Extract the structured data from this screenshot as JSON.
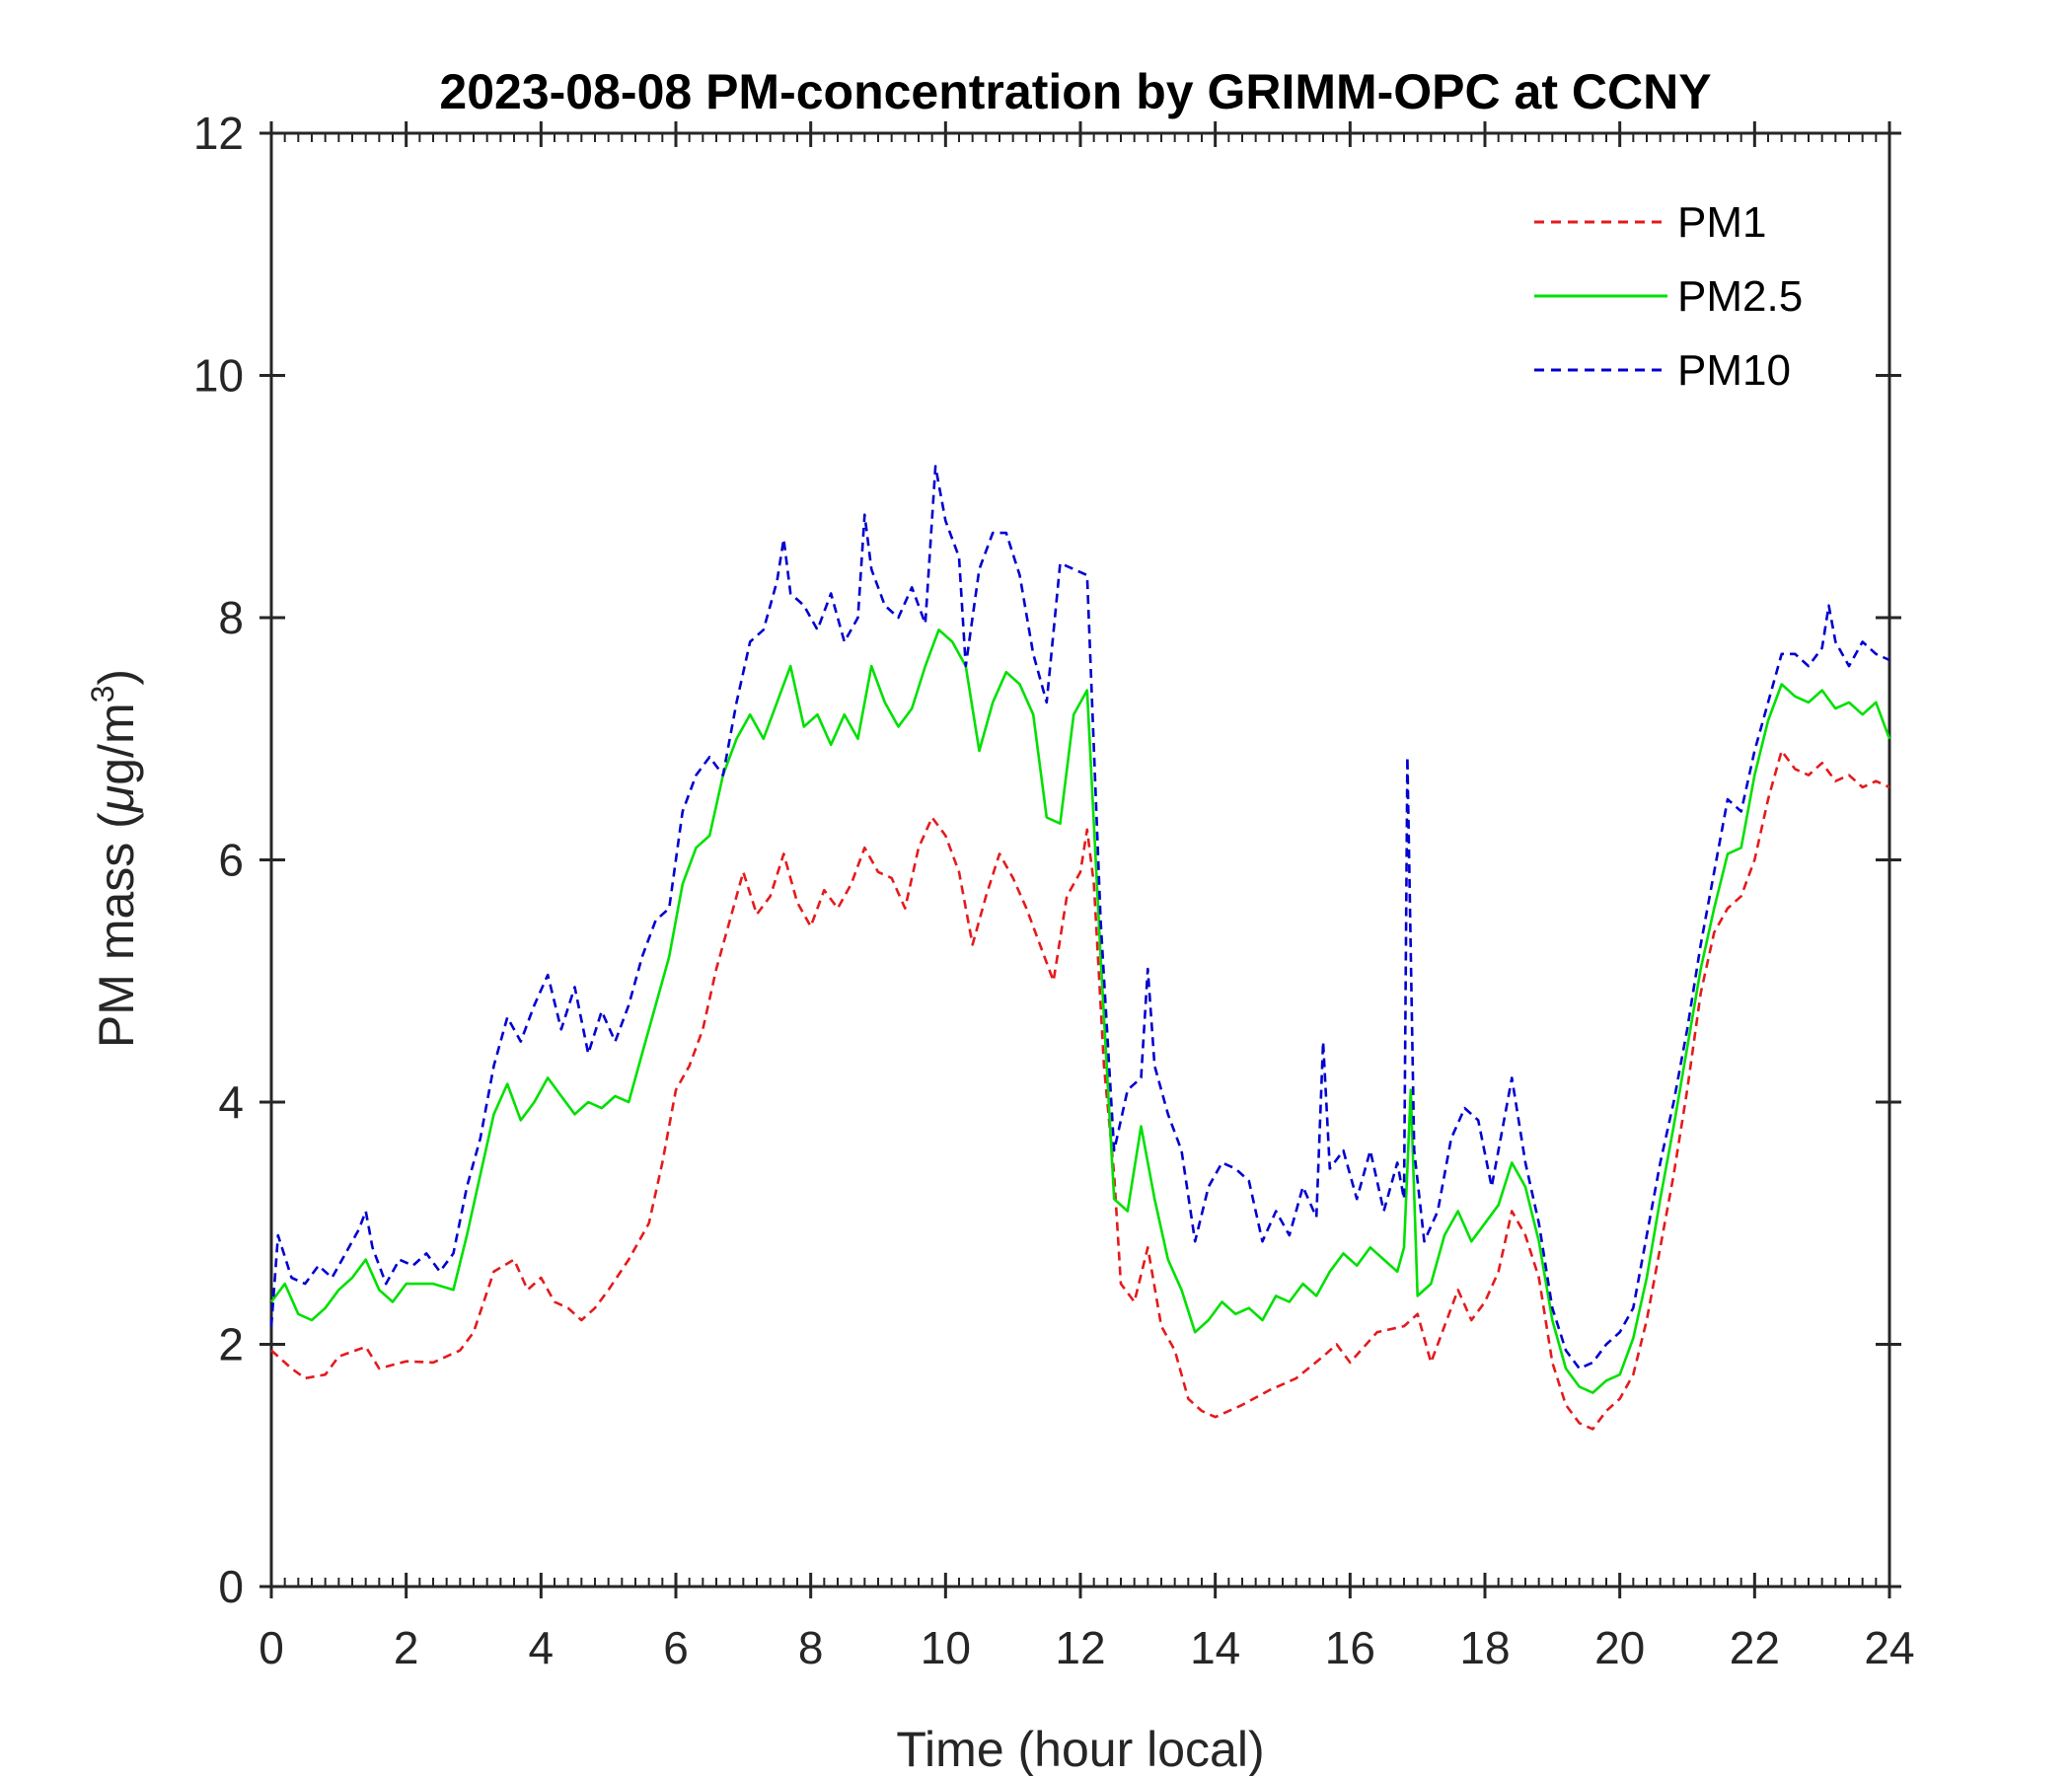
{
  "chart_data": {
    "type": "line",
    "title": "2023-08-08 PM-concentration by GRIMM-OPC at CCNY",
    "xlabel": "Time (hour local)",
    "ylabel": "PM mass (μg/m3)",
    "ylabel_parts": {
      "base": "PM mass (",
      "mu": "μ",
      "unit": "g/m",
      "sup": "3",
      "close": ")"
    },
    "xlim": [
      0,
      24
    ],
    "ylim": [
      0,
      12
    ],
    "xticks": [
      0,
      2,
      4,
      6,
      8,
      10,
      12,
      14,
      16,
      18,
      20,
      22,
      24
    ],
    "yticks": [
      0,
      2,
      4,
      6,
      8,
      10,
      12
    ],
    "xtick_labels": [
      "0",
      "2",
      "4",
      "6",
      "8",
      "10",
      "12",
      "14",
      "16",
      "18",
      "20",
      "22",
      "24"
    ],
    "ytick_labels": [
      "0",
      "2",
      "4",
      "6",
      "8",
      "10",
      "12"
    ],
    "grid": false,
    "legend_position": "top-right",
    "series": [
      {
        "name": "PM1",
        "color": "#e41a1c",
        "style": "dashed",
        "x": [
          0,
          0.3,
          0.5,
          0.8,
          1.0,
          1.4,
          1.6,
          2.0,
          2.4,
          2.8,
          3.0,
          3.3,
          3.6,
          3.8,
          4.0,
          4.2,
          4.4,
          4.6,
          4.8,
          5.0,
          5.3,
          5.6,
          5.8,
          6.0,
          6.2,
          6.4,
          6.6,
          6.8,
          7.0,
          7.2,
          7.4,
          7.6,
          7.8,
          8.0,
          8.2,
          8.4,
          8.6,
          8.8,
          9.0,
          9.2,
          9.4,
          9.6,
          9.8,
          10.0,
          10.2,
          10.4,
          10.6,
          10.8,
          11.0,
          11.2,
          11.4,
          11.6,
          11.8,
          12.0,
          12.1,
          12.2,
          12.35,
          12.5,
          12.6,
          12.8,
          13.0,
          13.2,
          13.4,
          13.6,
          13.8,
          14.0,
          14.4,
          14.8,
          15.2,
          15.6,
          15.8,
          16.0,
          16.4,
          16.8,
          17.0,
          17.2,
          17.4,
          17.6,
          17.8,
          18.0,
          18.2,
          18.4,
          18.6,
          18.8,
          19.0,
          19.2,
          19.4,
          19.6,
          19.8,
          20.0,
          20.2,
          20.4,
          20.6,
          20.8,
          21.0,
          21.2,
          21.4,
          21.6,
          21.8,
          22.0,
          22.2,
          22.4,
          22.6,
          22.8,
          23.0,
          23.2,
          23.4,
          23.6,
          23.8,
          24.0
        ],
        "y": [
          1.95,
          1.8,
          1.72,
          1.75,
          1.9,
          1.98,
          1.8,
          1.86,
          1.85,
          1.95,
          2.1,
          2.6,
          2.7,
          2.45,
          2.55,
          2.35,
          2.3,
          2.2,
          2.3,
          2.45,
          2.7,
          3.0,
          3.5,
          4.1,
          4.3,
          4.6,
          5.1,
          5.5,
          5.9,
          5.55,
          5.7,
          6.05,
          5.65,
          5.45,
          5.75,
          5.6,
          5.8,
          6.1,
          5.9,
          5.85,
          5.6,
          6.1,
          6.35,
          6.2,
          5.9,
          5.3,
          5.7,
          6.05,
          5.85,
          5.6,
          5.3,
          5.0,
          5.7,
          5.9,
          6.25,
          5.8,
          4.3,
          3.4,
          2.5,
          2.35,
          2.8,
          2.15,
          1.95,
          1.55,
          1.45,
          1.4,
          1.5,
          1.62,
          1.72,
          1.9,
          2.0,
          1.85,
          2.1,
          2.15,
          2.25,
          1.85,
          2.15,
          2.45,
          2.2,
          2.35,
          2.6,
          3.1,
          2.9,
          2.55,
          1.85,
          1.5,
          1.35,
          1.3,
          1.45,
          1.55,
          1.75,
          2.2,
          2.8,
          3.4,
          4.1,
          4.9,
          5.4,
          5.6,
          5.7,
          6.0,
          6.5,
          6.9,
          6.75,
          6.7,
          6.8,
          6.65,
          6.7,
          6.6,
          6.65,
          6.6
        ]
      },
      {
        "name": "PM2.5",
        "color": "#00e000",
        "style": "solid",
        "x": [
          0,
          0.2,
          0.4,
          0.6,
          0.8,
          1.0,
          1.2,
          1.4,
          1.6,
          1.8,
          2.0,
          2.4,
          2.7,
          2.9,
          3.1,
          3.3,
          3.5,
          3.7,
          3.9,
          4.1,
          4.3,
          4.5,
          4.7,
          4.9,
          5.1,
          5.3,
          5.5,
          5.7,
          5.9,
          6.1,
          6.3,
          6.5,
          6.7,
          6.9,
          7.1,
          7.3,
          7.5,
          7.7,
          7.9,
          8.1,
          8.3,
          8.5,
          8.7,
          8.9,
          9.1,
          9.3,
          9.5,
          9.7,
          9.9,
          10.1,
          10.3,
          10.5,
          10.7,
          10.9,
          11.1,
          11.3,
          11.5,
          11.7,
          11.9,
          12.1,
          12.3,
          12.5,
          12.7,
          12.9,
          13.1,
          13.3,
          13.5,
          13.7,
          13.9,
          14.1,
          14.3,
          14.5,
          14.7,
          14.9,
          15.1,
          15.3,
          15.5,
          15.7,
          15.9,
          16.1,
          16.3,
          16.5,
          16.7,
          16.8,
          16.9,
          17.0,
          17.2,
          17.4,
          17.6,
          17.8,
          18.0,
          18.2,
          18.4,
          18.6,
          18.8,
          19.0,
          19.2,
          19.4,
          19.6,
          19.8,
          20.0,
          20.2,
          20.4,
          20.6,
          20.8,
          21.0,
          21.2,
          21.4,
          21.6,
          21.8,
          22.0,
          22.2,
          22.4,
          22.6,
          22.8,
          23.0,
          23.2,
          23.4,
          23.6,
          23.8,
          24.0
        ],
        "y": [
          2.35,
          2.5,
          2.25,
          2.2,
          2.3,
          2.45,
          2.55,
          2.7,
          2.45,
          2.35,
          2.5,
          2.5,
          2.45,
          2.9,
          3.4,
          3.9,
          4.15,
          3.85,
          4.0,
          4.2,
          4.05,
          3.9,
          4.0,
          3.95,
          4.05,
          4.0,
          4.4,
          4.8,
          5.2,
          5.8,
          6.1,
          6.2,
          6.7,
          7.0,
          7.2,
          7.0,
          7.3,
          7.6,
          7.1,
          7.2,
          6.95,
          7.2,
          7.0,
          7.6,
          7.3,
          7.1,
          7.25,
          7.6,
          7.9,
          7.8,
          7.6,
          6.9,
          7.3,
          7.55,
          7.45,
          7.2,
          6.35,
          6.3,
          7.2,
          7.4,
          5.2,
          3.2,
          3.1,
          3.8,
          3.2,
          2.7,
          2.45,
          2.1,
          2.2,
          2.35,
          2.25,
          2.3,
          2.2,
          2.4,
          2.35,
          2.5,
          2.4,
          2.6,
          2.75,
          2.65,
          2.8,
          2.7,
          2.6,
          2.8,
          4.1,
          2.4,
          2.5,
          2.9,
          3.1,
          2.85,
          3.0,
          3.15,
          3.5,
          3.3,
          2.85,
          2.2,
          1.8,
          1.65,
          1.6,
          1.7,
          1.75,
          2.05,
          2.55,
          3.2,
          3.8,
          4.45,
          5.1,
          5.6,
          6.05,
          6.1,
          6.7,
          7.15,
          7.45,
          7.35,
          7.3,
          7.4,
          7.25,
          7.3,
          7.2,
          7.3,
          7.0
        ]
      },
      {
        "name": "PM10",
        "color": "#0000d0",
        "style": "dashed",
        "x": [
          0,
          0.1,
          0.3,
          0.5,
          0.7,
          0.9,
          1.1,
          1.3,
          1.4,
          1.5,
          1.7,
          1.9,
          2.1,
          2.3,
          2.5,
          2.7,
          2.9,
          3.1,
          3.3,
          3.5,
          3.7,
          3.9,
          4.1,
          4.3,
          4.5,
          4.7,
          4.9,
          5.1,
          5.3,
          5.5,
          5.7,
          5.9,
          6.1,
          6.3,
          6.5,
          6.7,
          6.9,
          7.1,
          7.3,
          7.5,
          7.6,
          7.7,
          7.9,
          8.1,
          8.3,
          8.5,
          8.7,
          8.8,
          8.9,
          9.1,
          9.3,
          9.5,
          9.7,
          9.85,
          10.0,
          10.2,
          10.3,
          10.5,
          10.7,
          10.9,
          11.1,
          11.3,
          11.5,
          11.7,
          11.9,
          12.1,
          12.3,
          12.5,
          12.7,
          12.9,
          13.0,
          13.1,
          13.3,
          13.5,
          13.7,
          13.9,
          14.1,
          14.3,
          14.5,
          14.7,
          14.9,
          15.1,
          15.3,
          15.5,
          15.6,
          15.7,
          15.9,
          16.1,
          16.3,
          16.5,
          16.7,
          16.8,
          16.85,
          16.95,
          17.1,
          17.3,
          17.5,
          17.7,
          17.9,
          18.1,
          18.3,
          18.4,
          18.6,
          18.8,
          19.0,
          19.2,
          19.4,
          19.6,
          19.8,
          20.0,
          20.2,
          20.4,
          20.6,
          20.8,
          21.0,
          21.2,
          21.4,
          21.6,
          21.8,
          22.0,
          22.2,
          22.4,
          22.6,
          22.8,
          23.0,
          23.1,
          23.2,
          23.4,
          23.6,
          23.8,
          24.0
        ],
        "y": [
          2.15,
          2.9,
          2.55,
          2.5,
          2.65,
          2.55,
          2.75,
          2.95,
          3.1,
          2.8,
          2.5,
          2.7,
          2.65,
          2.75,
          2.6,
          2.75,
          3.3,
          3.7,
          4.3,
          4.7,
          4.5,
          4.8,
          5.05,
          4.6,
          4.95,
          4.4,
          4.75,
          4.5,
          4.8,
          5.2,
          5.5,
          5.6,
          6.4,
          6.7,
          6.85,
          6.7,
          7.3,
          7.8,
          7.9,
          8.3,
          8.65,
          8.2,
          8.1,
          7.9,
          8.2,
          7.8,
          8.0,
          8.85,
          8.4,
          8.1,
          8.0,
          8.25,
          7.95,
          9.25,
          8.8,
          8.5,
          7.6,
          8.4,
          8.7,
          8.7,
          8.35,
          7.7,
          7.3,
          8.45,
          8.4,
          8.35,
          5.5,
          3.6,
          4.1,
          4.2,
          5.1,
          4.3,
          3.9,
          3.6,
          2.85,
          3.3,
          3.5,
          3.45,
          3.35,
          2.85,
          3.1,
          2.9,
          3.3,
          3.05,
          4.5,
          3.45,
          3.6,
          3.2,
          3.6,
          3.1,
          3.5,
          3.2,
          6.85,
          3.6,
          2.85,
          3.1,
          3.7,
          3.95,
          3.85,
          3.3,
          3.9,
          4.2,
          3.5,
          3.0,
          2.3,
          1.95,
          1.8,
          1.85,
          2.0,
          2.1,
          2.3,
          2.9,
          3.5,
          4.0,
          4.6,
          5.3,
          5.9,
          6.5,
          6.4,
          6.9,
          7.3,
          7.7,
          7.7,
          7.6,
          7.75,
          8.1,
          7.8,
          7.6,
          7.8,
          7.7,
          7.65
        ]
      }
    ]
  }
}
